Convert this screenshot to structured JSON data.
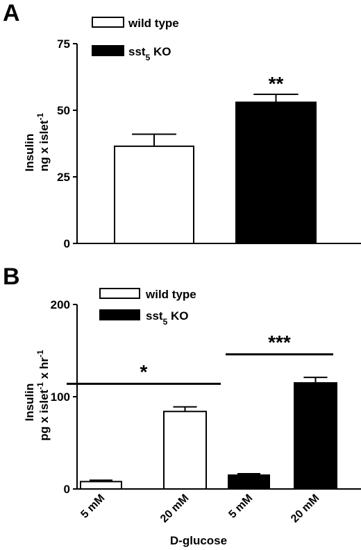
{
  "chart_data": [
    {
      "type": "bar",
      "panel": "A",
      "ylabel_line1": "Insulin",
      "ylabel_line2": "ng x islet",
      "ylabel_sup": "-1",
      "ylim": [
        0,
        75
      ],
      "yticks": [
        "0",
        "25",
        "50",
        "75"
      ],
      "legend": [
        {
          "name": "wild type",
          "color": "#ffffff"
        },
        {
          "name": "sst",
          "sub": "5",
          "suffix": " KO",
          "color": "#000000"
        }
      ],
      "legend_position": "top-left",
      "bars": [
        {
          "series": "wild type",
          "value": 36.5,
          "error": 4.5,
          "color": "#ffffff"
        },
        {
          "series": "sst5 KO",
          "value": 53,
          "error": 3,
          "color": "#000000"
        }
      ],
      "significance": [
        {
          "bar": 1,
          "label": "**"
        }
      ]
    },
    {
      "type": "bar",
      "panel": "B",
      "ylabel_line1": "Insulin",
      "ylabel_line2_a": "pg x islet",
      "ylabel_sup_a": "-1",
      "ylabel_line2_b": " x hr",
      "ylabel_sup_b": "-1",
      "xlabel": "D-glucose",
      "ylim": [
        0,
        200
      ],
      "yticks": [
        "0",
        "100",
        "200"
      ],
      "legend": [
        {
          "name": "wild type",
          "color": "#ffffff"
        },
        {
          "name": "sst",
          "sub": "5",
          "suffix": " KO",
          "color": "#000000"
        }
      ],
      "legend_position": "top-left",
      "categories": [
        "5 mM",
        "20 mM",
        "5 mM",
        "20 mM"
      ],
      "bars": [
        {
          "series": "wild type",
          "category": "5 mM",
          "value": 8,
          "error": 1.5,
          "color": "#ffffff"
        },
        {
          "series": "wild type",
          "category": "20 mM",
          "value": 84,
          "error": 5,
          "color": "#ffffff"
        },
        {
          "series": "sst5 KO",
          "category": "5 mM",
          "value": 15,
          "error": 1.5,
          "color": "#000000"
        },
        {
          "series": "sst5 KO",
          "category": "20 mM",
          "value": 115,
          "error": 6,
          "color": "#000000"
        }
      ],
      "significance": [
        {
          "from": 0,
          "to": 1,
          "label": "*",
          "value": 114
        },
        {
          "from": 2,
          "to": 3,
          "label": "***",
          "value": 146
        }
      ]
    }
  ]
}
